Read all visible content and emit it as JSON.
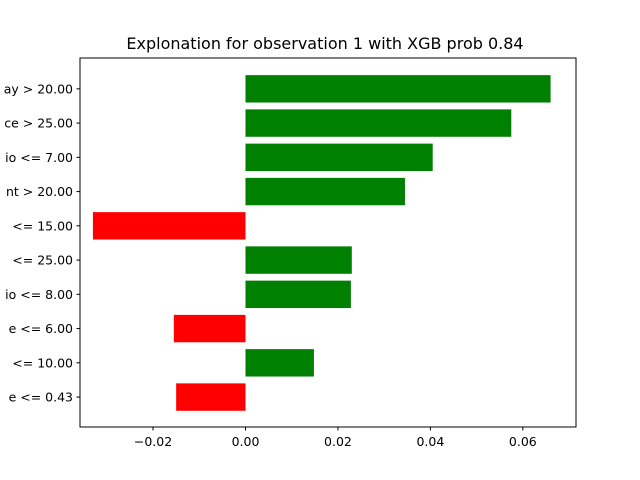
{
  "chart_data": {
    "type": "bar",
    "orientation": "horizontal",
    "title": "Explonation for observation 1 with XGB prob 0.84",
    "xlabel": "",
    "ylabel": "",
    "xlim": [
      -0.0358,
      0.0715
    ],
    "x_ticks": [
      -0.02,
      0.0,
      0.02,
      0.04,
      0.06
    ],
    "x_tick_labels": [
      "−0.02",
      "0.00",
      "0.02",
      "0.04",
      "0.06"
    ],
    "grid": false,
    "categories": [
      "ay > 20.00",
      "ce > 25.00",
      "io <= 7.00",
      "nt > 20.00",
      "<= 15.00",
      "<= 25.00",
      "io <= 8.00",
      "e <= 6.00",
      "<= 10.00",
      "e <= 0.43"
    ],
    "values": [
      0.066,
      0.0575,
      0.0405,
      0.0345,
      -0.033,
      0.023,
      0.0228,
      -0.0155,
      0.0148,
      -0.015
    ],
    "colors": {
      "positive": "#008000",
      "negative": "#ff0000"
    }
  }
}
